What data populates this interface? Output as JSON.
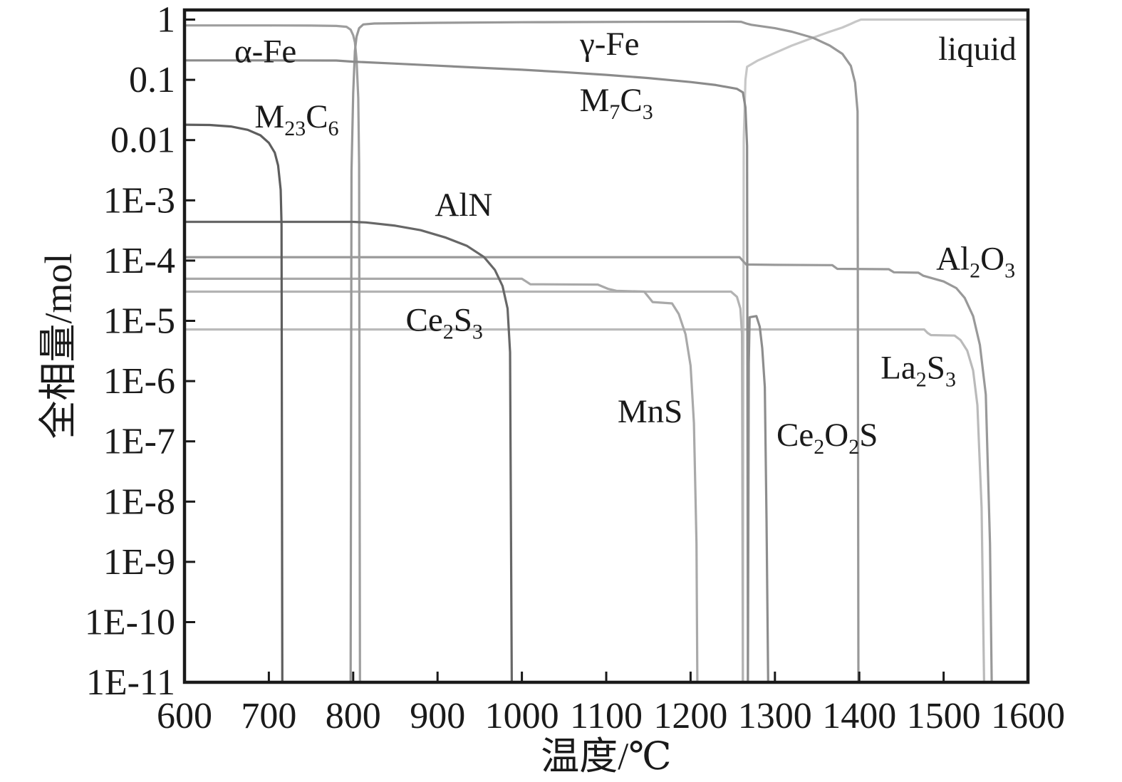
{
  "page": {
    "background": "#ffffff",
    "axis_color": "#1a1a1a"
  },
  "chart_data": {
    "type": "line",
    "title": "",
    "xlabel": "温度/℃",
    "ylabel": "全相量/mol",
    "xlim": [
      600,
      1600
    ],
    "ylog": true,
    "ylim": [
      1e-11,
      1.45
    ],
    "grid": false,
    "legend_position": "none-inline-annotations",
    "x_tick_labels": [
      "600",
      "700",
      "800",
      "900",
      "1000",
      "1100",
      "1200",
      "1300",
      "1400",
      "1500",
      "1600"
    ],
    "x_tick_values": [
      600,
      700,
      800,
      900,
      1000,
      1100,
      1200,
      1300,
      1400,
      1500,
      1600
    ],
    "y_tick_labels": [
      "1",
      "0.1",
      "0.01",
      "1E-3",
      "1E-4",
      "1E-5",
      "1E-6",
      "1E-7",
      "1E-8",
      "1E-9",
      "1E-10",
      "1E-11"
    ],
    "y_tick_exponents": [
      0,
      -1,
      -2,
      -3,
      -4,
      -5,
      -6,
      -7,
      -8,
      -9,
      -10,
      -11
    ],
    "series": [
      {
        "id": "liquid",
        "color": "#c7c7c7",
        "points": [
          [
            1262,
            1e-11
          ],
          [
            1263,
            0.01
          ],
          [
            1265,
            0.1
          ],
          [
            1267,
            0.165
          ],
          [
            1280,
            0.21
          ],
          [
            1300,
            0.28
          ],
          [
            1320,
            0.37
          ],
          [
            1345,
            0.5
          ],
          [
            1365,
            0.63
          ],
          [
            1380,
            0.74
          ],
          [
            1390,
            0.85
          ],
          [
            1396,
            0.93
          ],
          [
            1402,
            1.0
          ],
          [
            1500,
            1.0
          ],
          [
            1600,
            1.0
          ]
        ]
      },
      {
        "id": "la2s3",
        "color": "#bababa",
        "points": [
          [
            600,
            7.2e-06
          ],
          [
            800,
            7.2e-06
          ],
          [
            1000,
            7.2e-06
          ],
          [
            1200,
            7.2e-06
          ],
          [
            1400,
            7.2e-06
          ],
          [
            1477,
            7.2e-06
          ],
          [
            1481,
            6.3e-06
          ],
          [
            1485,
            5.8e-06
          ],
          [
            1513,
            5.7e-06
          ],
          [
            1520,
            4.8e-06
          ],
          [
            1528,
            3.2e-06
          ],
          [
            1535,
            1.5e-06
          ],
          [
            1540,
            4e-07
          ],
          [
            1545,
            8e-09
          ],
          [
            1548,
            1e-11
          ]
        ]
      },
      {
        "id": "ce2s3",
        "color": "#b3b3b3",
        "points": [
          [
            600,
            3.05e-05
          ],
          [
            800,
            3.05e-05
          ],
          [
            1000,
            3.05e-05
          ],
          [
            1200,
            3.05e-05
          ],
          [
            1248,
            3.05e-05
          ],
          [
            1255,
            2.5e-05
          ],
          [
            1259,
            1.6e-05
          ],
          [
            1261,
            6e-06
          ],
          [
            1262,
            1e-11
          ]
        ]
      },
      {
        "id": "mns",
        "color": "#a9a9a9",
        "points": [
          [
            600,
            5e-05
          ],
          [
            800,
            5e-05
          ],
          [
            1000,
            5e-05
          ],
          [
            1005,
            4.5e-05
          ],
          [
            1010,
            4.05e-05
          ],
          [
            1090,
            4e-05
          ],
          [
            1102,
            3.4e-05
          ],
          [
            1112,
            3.15e-05
          ],
          [
            1145,
            3.05e-05
          ],
          [
            1150,
            2.5e-05
          ],
          [
            1155,
            2.05e-05
          ],
          [
            1178,
            1.95e-05
          ],
          [
            1186,
            1.3e-05
          ],
          [
            1194,
            6e-06
          ],
          [
            1200,
            1.8e-06
          ],
          [
            1204,
            2e-07
          ],
          [
            1207,
            2e-09
          ],
          [
            1208,
            1e-11
          ]
        ]
      },
      {
        "id": "al2o3",
        "color": "#999999",
        "points": [
          [
            600,
            0.000114
          ],
          [
            900,
            0.000114
          ],
          [
            1200,
            0.000114
          ],
          [
            1258,
            0.000114
          ],
          [
            1266,
            8.6e-05
          ],
          [
            1300,
            8.5e-05
          ],
          [
            1368,
            8.4e-05
          ],
          [
            1374,
            7.3e-05
          ],
          [
            1435,
            7.2e-05
          ],
          [
            1441,
            6.4e-05
          ],
          [
            1470,
            6.3e-05
          ],
          [
            1476,
            5.6e-05
          ],
          [
            1500,
            4.5e-05
          ],
          [
            1515,
            3.5e-05
          ],
          [
            1525,
            2.4e-05
          ],
          [
            1535,
            1.2e-05
          ],
          [
            1543,
            4e-06
          ],
          [
            1550,
            6e-07
          ],
          [
            1555,
            2e-09
          ],
          [
            1557,
            1e-11
          ]
        ]
      },
      {
        "id": "alpha-fe",
        "color": "#9e9e9e",
        "points": [
          [
            600,
            0.8
          ],
          [
            650,
            0.8
          ],
          [
            700,
            0.8
          ],
          [
            750,
            0.795
          ],
          [
            780,
            0.785
          ],
          [
            792,
            0.76
          ],
          [
            797,
            0.68
          ],
          [
            800,
            0.55
          ],
          [
            802,
            0.42
          ],
          [
            804,
            0.22
          ],
          [
            806,
            0.05
          ],
          [
            807,
            0.004
          ],
          [
            808,
            1e-11
          ]
        ]
      },
      {
        "id": "gamma-fe",
        "color": "#989898",
        "points": [
          [
            797,
            1e-11
          ],
          [
            798,
            0.003
          ],
          [
            800,
            0.06
          ],
          [
            802,
            0.3
          ],
          [
            804,
            0.52
          ],
          [
            807,
            0.72
          ],
          [
            812,
            0.83
          ],
          [
            825,
            0.862
          ],
          [
            900,
            0.885
          ],
          [
            1000,
            0.905
          ],
          [
            1100,
            0.915
          ],
          [
            1200,
            0.922
          ],
          [
            1250,
            0.925
          ],
          [
            1260,
            0.918
          ],
          [
            1266,
            0.86
          ],
          [
            1272,
            0.82
          ],
          [
            1300,
            0.72
          ],
          [
            1320,
            0.63
          ],
          [
            1345,
            0.5
          ],
          [
            1365,
            0.37
          ],
          [
            1380,
            0.27
          ],
          [
            1390,
            0.17
          ],
          [
            1395,
            0.09
          ],
          [
            1398,
            0.03
          ],
          [
            1399,
            1e-11
          ]
        ]
      },
      {
        "id": "m7c3",
        "color": "#8b8b8b",
        "points": [
          [
            600,
            0.21
          ],
          [
            700,
            0.21
          ],
          [
            780,
            0.209
          ],
          [
            800,
            0.2
          ],
          [
            850,
            0.186
          ],
          [
            900,
            0.172
          ],
          [
            950,
            0.159
          ],
          [
            1000,
            0.147
          ],
          [
            1050,
            0.134
          ],
          [
            1100,
            0.121
          ],
          [
            1150,
            0.107
          ],
          [
            1200,
            0.092
          ],
          [
            1230,
            0.082
          ],
          [
            1255,
            0.071
          ],
          [
            1262,
            0.062
          ],
          [
            1265,
            0.035
          ],
          [
            1267,
            0.008
          ],
          [
            1268,
            1e-11
          ]
        ]
      },
      {
        "id": "ce2o2s",
        "color": "#8d8d8d",
        "points": [
          [
            1268,
            1e-11
          ],
          [
            1269,
            2e-06
          ],
          [
            1270,
            1.15e-05
          ],
          [
            1278,
            1.2e-05
          ],
          [
            1282,
            8e-06
          ],
          [
            1285,
            3.5e-06
          ],
          [
            1288,
            8e-07
          ],
          [
            1290,
            5e-09
          ],
          [
            1292,
            1e-11
          ]
        ]
      },
      {
        "id": "aln",
        "color": "#676767",
        "points": [
          [
            600,
            0.00044
          ],
          [
            700,
            0.00044
          ],
          [
            800,
            0.00044
          ],
          [
            815,
            0.00043
          ],
          [
            850,
            0.00038
          ],
          [
            880,
            0.00032
          ],
          [
            910,
            0.00024
          ],
          [
            935,
            0.000175
          ],
          [
            955,
            0.000115
          ],
          [
            968,
            7e-05
          ],
          [
            977,
            3.8e-05
          ],
          [
            983,
            1.6e-05
          ],
          [
            986,
            3e-06
          ],
          [
            988,
            1e-11
          ]
        ]
      },
      {
        "id": "m23c6",
        "color": "#5e5e5e",
        "points": [
          [
            600,
            0.018
          ],
          [
            630,
            0.0178
          ],
          [
            655,
            0.0168
          ],
          [
            675,
            0.0148
          ],
          [
            690,
            0.012
          ],
          [
            700,
            0.009
          ],
          [
            707,
            0.0062
          ],
          [
            711,
            0.0038
          ],
          [
            714,
            0.0015
          ],
          [
            715,
            0.0004
          ],
          [
            716,
            1e-11
          ]
        ]
      }
    ],
    "annotations": [
      {
        "id": "alpha-fe",
        "x": 696,
        "y": 0.3,
        "segments": [
          {
            "t": "α-Fe"
          }
        ]
      },
      {
        "id": "gamma-fe",
        "x": 1104,
        "y": 0.4,
        "segments": [
          {
            "t": "γ-Fe"
          }
        ]
      },
      {
        "id": "liquid",
        "x": 1540,
        "y": 0.33,
        "segments": [
          {
            "t": "liquid"
          }
        ]
      },
      {
        "id": "m23c6",
        "x": 733,
        "y": 0.025,
        "segments": [
          {
            "t": "M"
          },
          {
            "t": "23",
            "sub": true
          },
          {
            "t": "C"
          },
          {
            "t": "6",
            "sub": true
          }
        ]
      },
      {
        "id": "m7c3",
        "x": 1112,
        "y": 0.047,
        "segments": [
          {
            "t": "M"
          },
          {
            "t": "7",
            "sub": true
          },
          {
            "t": "C"
          },
          {
            "t": "3",
            "sub": true
          }
        ]
      },
      {
        "id": "aln",
        "x": 931,
        "y": 0.00086,
        "segments": [
          {
            "t": "AlN"
          }
        ]
      },
      {
        "id": "ce2s3",
        "x": 908,
        "y": 1.05e-05,
        "segments": [
          {
            "t": "Ce"
          },
          {
            "t": "2",
            "sub": true
          },
          {
            "t": "S"
          },
          {
            "t": "3",
            "sub": true
          }
        ]
      },
      {
        "id": "mns",
        "x": 1152,
        "y": 3.2e-07,
        "segments": [
          {
            "t": "MnS"
          }
        ]
      },
      {
        "id": "ce2o2s",
        "x": 1362,
        "y": 1.3e-07,
        "segments": [
          {
            "t": "Ce"
          },
          {
            "t": "2",
            "sub": true
          },
          {
            "t": "O"
          },
          {
            "t": "2",
            "sub": true
          },
          {
            "t": "S"
          }
        ]
      },
      {
        "id": "la2s3",
        "x": 1470,
        "y": 1.7e-06,
        "segments": [
          {
            "t": "La"
          },
          {
            "t": "2",
            "sub": true
          },
          {
            "t": "S"
          },
          {
            "t": "3",
            "sub": true
          }
        ]
      },
      {
        "id": "al2o3",
        "x": 1538,
        "y": 0.00011,
        "segments": [
          {
            "t": "Al"
          },
          {
            "t": "2",
            "sub": true
          },
          {
            "t": "O"
          },
          {
            "t": "3",
            "sub": true
          }
        ]
      }
    ]
  }
}
